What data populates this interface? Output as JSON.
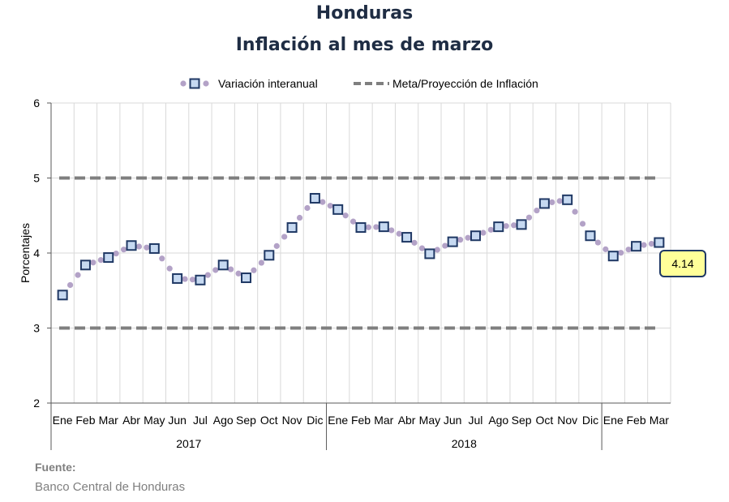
{
  "title": "Honduras",
  "subtitle": "Inflación al mes de marzo",
  "source": {
    "label": "Fuente:",
    "text": "Banco Central de Honduras"
  },
  "colors": {
    "series": "#b3a2c7",
    "marker_fill": "#c6d9f1",
    "marker_stroke": "#1f3864",
    "target": "#7f7f7f",
    "callout_fill": "#ffff99",
    "callout_stroke": "#1f3864",
    "title": "#1f2d44"
  },
  "chart_data": {
    "type": "line",
    "ylabel": "Porcentajes",
    "ylim": [
      2,
      6
    ],
    "yticks": [
      2,
      3,
      4,
      5,
      6
    ],
    "grid": true,
    "legend_position": "top",
    "categories": [
      "Ene",
      "Feb",
      "Mar",
      "Abr",
      "May",
      "Jun",
      "Jul",
      "Ago",
      "Sep",
      "Oct",
      "Nov",
      "Dic",
      "Ene",
      "Feb",
      "Mar",
      "Abr",
      "May",
      "Jun",
      "Jul",
      "Ago",
      "Sep",
      "Oct",
      "Nov",
      "Dic",
      "Ene",
      "Feb",
      "Mar"
    ],
    "groups": [
      {
        "label": "2017",
        "count": 12
      },
      {
        "label": "2018",
        "count": 12
      },
      {
        "label": "",
        "count": 3
      }
    ],
    "series": [
      {
        "name": "Variación interanual",
        "style": "dotted-with-markers",
        "values": [
          3.44,
          3.84,
          3.94,
          4.1,
          4.06,
          3.66,
          3.64,
          3.84,
          3.67,
          3.97,
          4.34,
          4.73,
          4.58,
          4.34,
          4.35,
          4.21,
          3.99,
          4.15,
          4.23,
          4.35,
          4.38,
          4.66,
          4.71,
          4.23,
          3.96,
          4.09,
          4.14
        ]
      },
      {
        "name": "Meta/Proyección de Inflación",
        "style": "dashed",
        "bands": [
          3,
          5
        ]
      }
    ],
    "callout": "4.14"
  }
}
